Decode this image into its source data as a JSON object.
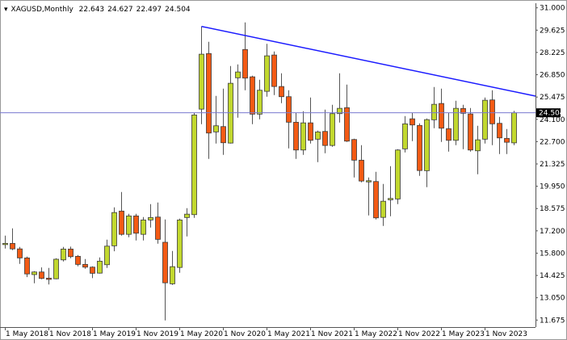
{
  "header": {
    "symbol_label": "XAGUSD,Monthly",
    "open": "22.643",
    "high": "24.627",
    "low": "22.497",
    "close": "24.504"
  },
  "chart_data": {
    "type": "candlestick",
    "symbol": "XAGUSD",
    "timeframe": "Monthly",
    "ylim": [
      11.675,
      31.0
    ],
    "y_ticks": [
      "31.000",
      "29.625",
      "28.225",
      "26.850",
      "25.475",
      "24.100",
      "22.700",
      "21.325",
      "19.950",
      "18.575",
      "17.200",
      "15.800",
      "14.425",
      "13.050",
      "11.675"
    ],
    "x_ticks": [
      "1 May 2018",
      "1 Nov 2018",
      "1 May 2019",
      "1 Nov 2019",
      "1 May 2020",
      "1 Nov 2020",
      "1 May 2021",
      "1 Nov 2021",
      "1 May 2022",
      "1 Nov 2022",
      "1 May 2023",
      "1 Nov 2023"
    ],
    "current_price": "24.504",
    "colors": {
      "bull": "#c2d82e",
      "bear": "#f35a14",
      "wick": "#555555",
      "outline": "#3a3a3a",
      "trendline": "#1a1aff",
      "price_line": "#7a7ad0",
      "price_label_bg": "#000000"
    },
    "trendline": [
      {
        "time": "2020-08",
        "price": 29.85
      },
      {
        "time": "2023-12",
        "price": 26.1
      }
    ],
    "months": [
      "2018-05",
      "2018-06",
      "2018-07",
      "2018-08",
      "2018-09",
      "2018-10",
      "2018-11",
      "2018-12",
      "2019-01",
      "2019-02",
      "2019-03",
      "2019-04",
      "2019-05",
      "2019-06",
      "2019-07",
      "2019-08",
      "2019-09",
      "2019-10",
      "2019-11",
      "2019-12",
      "2020-01",
      "2020-02",
      "2020-03",
      "2020-04",
      "2020-05",
      "2020-06",
      "2020-07",
      "2020-08",
      "2020-09",
      "2020-10",
      "2020-11",
      "2020-12",
      "2021-01",
      "2021-02",
      "2021-03",
      "2021-04",
      "2021-05",
      "2021-06",
      "2021-07",
      "2021-08",
      "2021-09",
      "2021-10",
      "2021-11",
      "2021-12",
      "2022-01",
      "2022-02",
      "2022-03",
      "2022-04",
      "2022-05",
      "2022-06",
      "2022-07",
      "2022-08",
      "2022-09",
      "2022-10",
      "2022-11",
      "2022-12",
      "2023-01",
      "2023-02",
      "2023-03",
      "2023-04",
      "2023-05",
      "2023-06",
      "2023-07",
      "2023-08",
      "2023-09",
      "2023-10",
      "2023-11",
      "2023-12",
      "2024-01",
      "2024-02",
      "2024-03"
    ],
    "ohlc": [
      [
        16.35,
        16.9,
        16.1,
        16.42
      ],
      [
        16.42,
        17.35,
        16.0,
        16.08
      ],
      [
        16.08,
        16.2,
        15.15,
        15.52
      ],
      [
        15.52,
        15.6,
        14.33,
        14.53
      ],
      [
        14.49,
        14.7,
        13.95,
        14.65
      ],
      [
        14.65,
        14.93,
        14.2,
        14.25
      ],
      [
        14.27,
        14.9,
        13.88,
        14.19
      ],
      [
        14.23,
        15.5,
        14.2,
        15.44
      ],
      [
        15.4,
        16.2,
        15.3,
        16.07
      ],
      [
        16.07,
        16.22,
        15.5,
        15.6
      ],
      [
        15.62,
        15.7,
        15.0,
        15.12
      ],
      [
        15.12,
        15.45,
        14.85,
        14.95
      ],
      [
        14.95,
        15.0,
        14.27,
        14.57
      ],
      [
        14.58,
        15.55,
        14.55,
        15.32
      ],
      [
        15.1,
        16.65,
        14.9,
        16.25
      ],
      [
        16.27,
        18.65,
        15.93,
        18.33
      ],
      [
        18.42,
        19.6,
        16.9,
        16.98
      ],
      [
        16.98,
        18.25,
        16.8,
        18.12
      ],
      [
        18.12,
        18.25,
        16.6,
        17.05
      ],
      [
        16.98,
        18.05,
        16.6,
        17.87
      ],
      [
        17.87,
        18.85,
        17.4,
        18.02
      ],
      [
        18.05,
        18.95,
        16.4,
        16.67
      ],
      [
        16.49,
        17.9,
        11.65,
        13.98
      ],
      [
        13.92,
        15.95,
        13.85,
        14.98
      ],
      [
        14.93,
        17.95,
        14.6,
        17.87
      ],
      [
        18.02,
        18.6,
        16.85,
        18.23
      ],
      [
        18.2,
        24.5,
        18.0,
        24.37
      ],
      [
        24.73,
        29.85,
        23.8,
        28.13
      ],
      [
        28.17,
        28.9,
        21.65,
        23.25
      ],
      [
        23.32,
        25.55,
        22.6,
        23.7
      ],
      [
        23.65,
        26.0,
        21.9,
        22.65
      ],
      [
        22.63,
        27.4,
        22.6,
        26.33
      ],
      [
        26.67,
        27.5,
        24.2,
        27.03
      ],
      [
        28.42,
        30.1,
        25.9,
        26.65
      ],
      [
        26.73,
        26.8,
        23.8,
        24.42
      ],
      [
        24.42,
        26.55,
        24.1,
        25.9
      ],
      [
        25.83,
        28.77,
        25.5,
        28.03
      ],
      [
        28.08,
        28.3,
        25.6,
        26.13
      ],
      [
        26.13,
        26.95,
        25.1,
        25.5
      ],
      [
        25.5,
        25.9,
        22.3,
        23.92
      ],
      [
        23.92,
        24.5,
        21.65,
        22.2
      ],
      [
        22.2,
        24.6,
        21.9,
        23.88
      ],
      [
        23.88,
        25.45,
        22.6,
        22.8
      ],
      [
        22.87,
        23.4,
        21.45,
        23.32
      ],
      [
        23.35,
        24.7,
        22.0,
        22.48
      ],
      [
        22.48,
        25.0,
        22.4,
        24.45
      ],
      [
        24.45,
        26.95,
        23.9,
        24.78
      ],
      [
        24.82,
        26.25,
        22.7,
        22.75
      ],
      [
        22.85,
        22.9,
        20.5,
        21.57
      ],
      [
        21.57,
        22.5,
        20.2,
        20.28
      ],
      [
        20.28,
        20.5,
        18.15,
        20.3
      ],
      [
        20.25,
        20.85,
        17.9,
        18.0
      ],
      [
        18.03,
        20.1,
        17.5,
        19.03
      ],
      [
        19.12,
        21.2,
        18.1,
        19.2
      ],
      [
        19.17,
        22.25,
        18.85,
        22.2
      ],
      [
        22.27,
        24.3,
        22.05,
        23.82
      ],
      [
        24.13,
        24.5,
        22.75,
        23.75
      ],
      [
        23.72,
        23.85,
        20.6,
        20.93
      ],
      [
        20.92,
        24.15,
        19.9,
        24.08
      ],
      [
        24.07,
        26.1,
        23.55,
        25.03
      ],
      [
        25.08,
        26.0,
        22.7,
        23.55
      ],
      [
        23.52,
        24.5,
        22.1,
        22.8
      ],
      [
        22.8,
        25.25,
        22.5,
        24.78
      ],
      [
        24.77,
        25.0,
        22.25,
        24.47
      ],
      [
        24.43,
        24.8,
        22.1,
        22.2
      ],
      [
        22.15,
        23.7,
        20.7,
        22.83
      ],
      [
        22.87,
        25.45,
        22.6,
        25.28
      ],
      [
        25.3,
        25.9,
        22.5,
        23.82
      ],
      [
        23.85,
        24.25,
        21.95,
        22.95
      ],
      [
        22.92,
        23.5,
        21.95,
        22.68
      ],
      [
        22.643,
        24.627,
        22.497,
        24.504
      ]
    ]
  }
}
